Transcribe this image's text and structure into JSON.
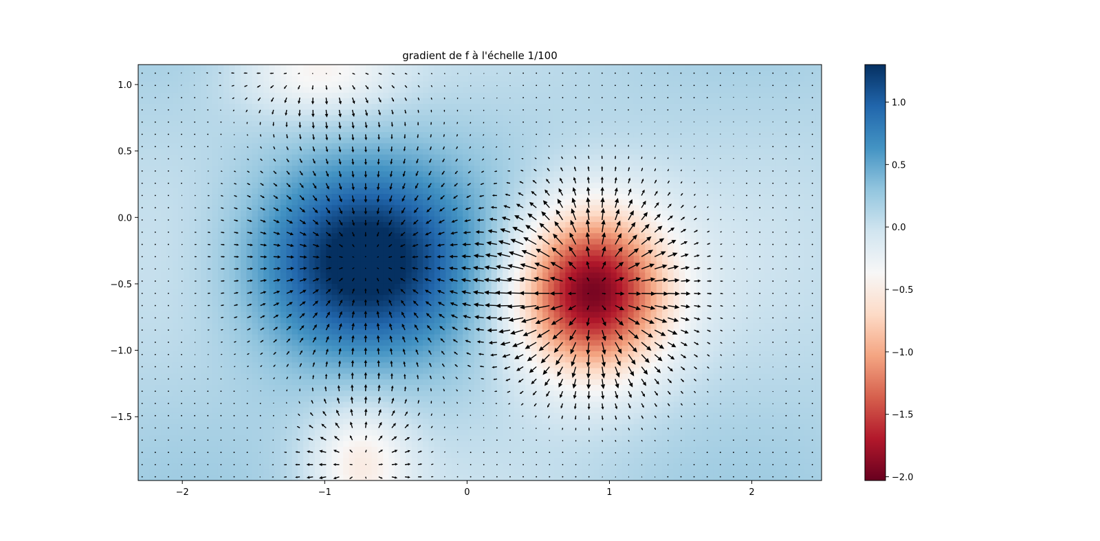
{
  "chart_data": {
    "type": "heatmap",
    "title": "gradient de f à l'échelle 1/100",
    "xlabel": "",
    "ylabel": "",
    "xlim": [
      -2.31,
      2.49
    ],
    "ylim": [
      -1.98,
      1.15
    ],
    "x_ticks": [
      -2,
      -1,
      0,
      1,
      2
    ],
    "x_tick_labels": [
      "−2",
      "−1",
      "0",
      "1",
      "2"
    ],
    "y_ticks": [
      1.0,
      0.5,
      0.0,
      -0.5,
      -1.0,
      -1.5
    ],
    "y_tick_labels": [
      "1.0",
      "0.5",
      "0.0",
      "−0.5",
      "−1.0",
      "−1.5"
    ],
    "colormap": "RdBu",
    "colorbar": {
      "range": [
        -2.03,
        1.3
      ],
      "ticks": [
        1.0,
        0.5,
        0.0,
        -0.5,
        -1.0,
        -1.5,
        -2.0
      ],
      "tick_labels": [
        "1.0",
        "0.5",
        "0.0",
        "−0.5",
        "−1.0",
        "−1.5",
        "−2.0"
      ]
    },
    "field": {
      "description_model": "smooth scalar field with maximum near (-0.75,-0.33) and minimum near (0.87,-0.56)",
      "max_center": [
        -0.75,
        -0.33
      ],
      "max_value": 1.3,
      "min_center": [
        0.87,
        -0.56
      ],
      "min_value": -2.03
    },
    "quiver": {
      "kind": "gradient",
      "scale_label": "1/100",
      "grid_x_count": 52,
      "grid_y_count": 34
    },
    "grid": false,
    "legend": "none"
  }
}
